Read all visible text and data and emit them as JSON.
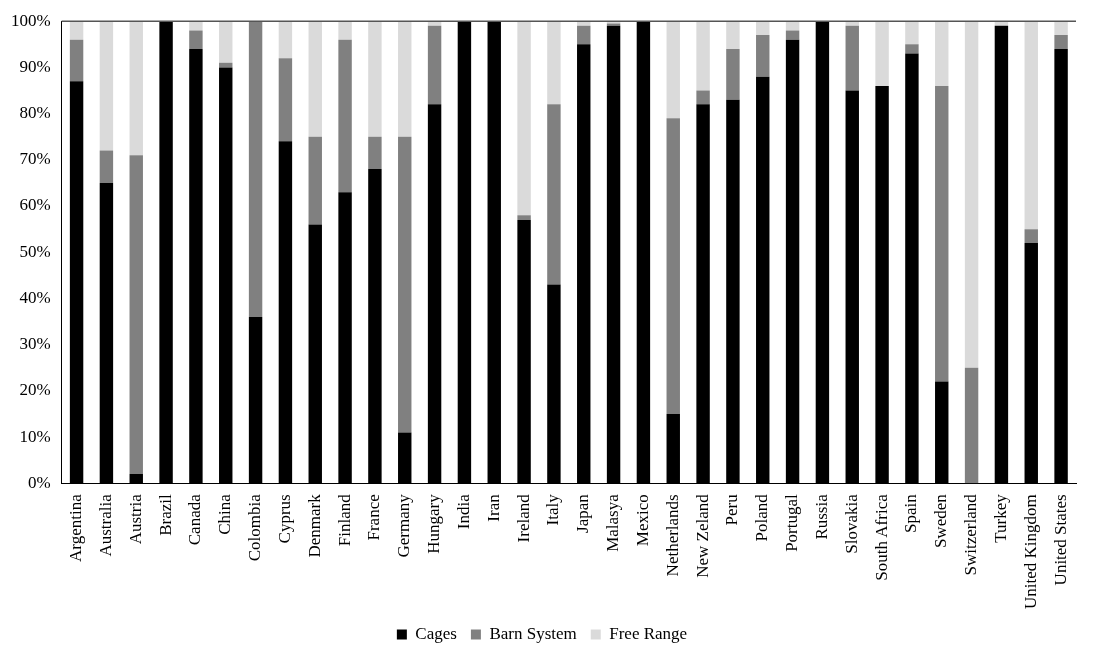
{
  "chart_data": {
    "type": "bar",
    "stacked": true,
    "categories": [
      "Argentina",
      "Australia",
      "Austria",
      "Brazil",
      "Canada",
      "China",
      "Colombia",
      "Cyprus",
      "Denmark",
      "Finland",
      "France",
      "Germany",
      "Hungary",
      "India",
      "Iran",
      "Ireland",
      "Italy",
      "Japan",
      "Malasya",
      "Mexico",
      "Netherlands",
      "New Zeland",
      "Peru",
      "Poland",
      "Portugal",
      "Russia",
      "Slovakia",
      "South Africa",
      "Spain",
      "Sweden",
      "Switzerland",
      "Turkey",
      "United Kingdom",
      "United States"
    ],
    "series": [
      {
        "name": "Cages",
        "color": "#000000",
        "values": [
          87,
          65,
          2,
          100,
          94,
          90,
          36,
          74,
          56,
          63,
          68,
          11,
          82,
          100,
          100,
          57,
          43,
          95,
          99,
          100,
          15,
          82,
          83,
          88,
          96,
          100,
          85,
          86,
          93,
          22,
          0,
          99,
          52,
          94
        ]
      },
      {
        "name": "Barn System",
        "color": "#808080",
        "values": [
          9,
          7,
          69,
          0,
          4,
          1,
          64,
          18,
          19,
          33,
          7,
          64,
          17,
          0,
          0,
          1,
          39,
          4,
          0.5,
          0,
          64,
          3,
          11,
          9,
          2,
          0,
          14,
          0,
          2,
          64,
          25,
          0,
          3,
          3
        ]
      },
      {
        "name": "Free Range",
        "color": "#dadada",
        "values": [
          4,
          28,
          29,
          0,
          2,
          9,
          0,
          8,
          25,
          4,
          25,
          25,
          1,
          0,
          0,
          42,
          18,
          1,
          0.5,
          0,
          21,
          15,
          6,
          3,
          2,
          0,
          1,
          14,
          5,
          14,
          75,
          1,
          45,
          3
        ]
      }
    ],
    "ylim": [
      0,
      100
    ],
    "yticks": [
      {
        "value": 0,
        "label": "0%"
      },
      {
        "value": 10,
        "label": "10%"
      },
      {
        "value": 20,
        "label": "20%"
      },
      {
        "value": 30,
        "label": "30%"
      },
      {
        "value": 40,
        "label": "40%"
      },
      {
        "value": 50,
        "label": "50%"
      },
      {
        "value": 60,
        "label": "60%"
      },
      {
        "value": 70,
        "label": "70%"
      },
      {
        "value": 80,
        "label": "80%"
      },
      {
        "value": 90,
        "label": "90%"
      },
      {
        "value": 100,
        "label": "100%"
      }
    ],
    "grid": false,
    "legend": "bottom"
  }
}
